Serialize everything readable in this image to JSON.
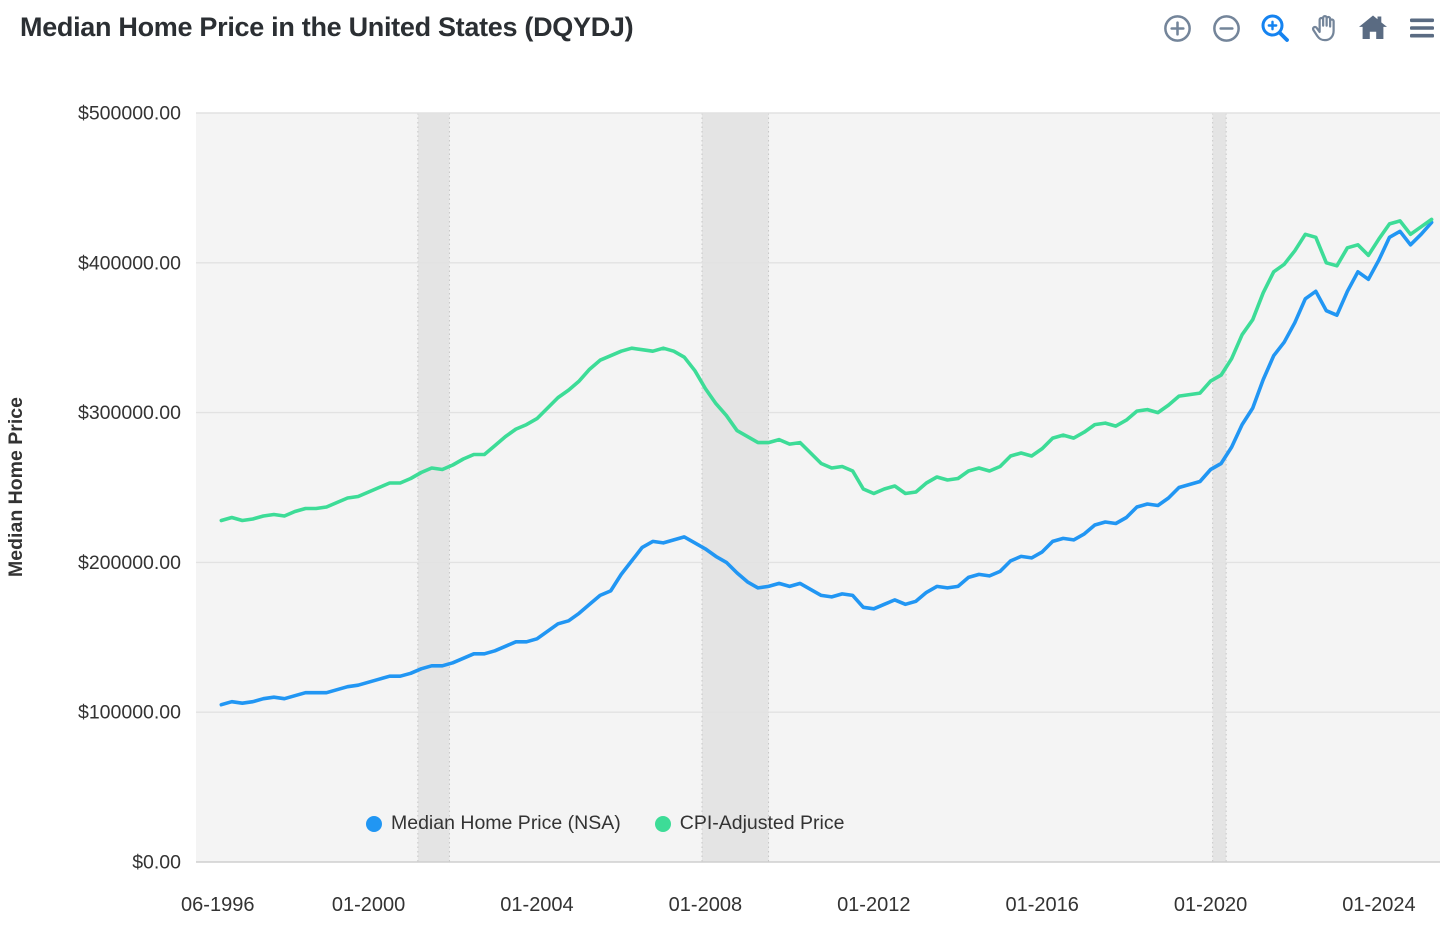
{
  "header": {
    "title": "Median Home Price in the United States (DQYDJ)",
    "toolbar": {
      "buttons": [
        {
          "id": "zoom-in",
          "icon": "circle-plus-icon",
          "active": false
        },
        {
          "id": "zoom-out",
          "icon": "circle-minus-icon",
          "active": false
        },
        {
          "id": "box-zoom",
          "icon": "magnifier-plus-icon",
          "active": true
        },
        {
          "id": "pan",
          "icon": "hand-icon",
          "active": false
        },
        {
          "id": "reset",
          "icon": "home-icon",
          "active": false
        },
        {
          "id": "menu",
          "icon": "hamburger-icon",
          "active": false
        }
      ]
    }
  },
  "colors": {
    "title_text": "#2b2f33",
    "axis_text": "#333333",
    "plot_bg": "#f4f4f4",
    "grid_line": "#e2e2e2",
    "axis_line": "#cfcfcf",
    "band_fill": "#e4e4e4",
    "band_edge": "#c6c6c6",
    "icon_gray": "#74859a",
    "icon_dark": "#5a6b82",
    "icon_active_blue": "#1583f0",
    "series_blue": "#2196f3",
    "series_green": "#3ddc97"
  },
  "chart_data": {
    "type": "line",
    "title": "Median Home Price in the United States (DQYDJ)",
    "xlabel": "",
    "ylabel": "Median Home Price",
    "grid": true,
    "legend_position": "bottom-inside",
    "xlim": [
      1995.9,
      2025.45
    ],
    "ylim": [
      0,
      500000
    ],
    "y_ticks": {
      "values": [
        0,
        100000,
        200000,
        300000,
        400000,
        500000
      ],
      "labels": [
        "$0.00",
        "$100000.00",
        "$200000.00",
        "$300000.00",
        "$400000.00",
        "$500000.00"
      ]
    },
    "x_ticks": {
      "values": [
        1996.417,
        2000,
        2004,
        2008,
        2012,
        2016,
        2020,
        2024
      ],
      "labels": [
        "06-1996",
        "01-2000",
        "01-2004",
        "01-2008",
        "01-2012",
        "01-2016",
        "01-2020",
        "01-2024"
      ]
    },
    "recession_bands": [
      [
        2001.17,
        2001.92
      ],
      [
        2007.92,
        2009.5
      ],
      [
        2020.05,
        2020.37
      ]
    ],
    "x": [
      1996.5,
      1996.75,
      1997,
      1997.25,
      1997.5,
      1997.75,
      1998,
      1998.25,
      1998.5,
      1998.75,
      1999,
      1999.25,
      1999.5,
      1999.75,
      2000,
      2000.25,
      2000.5,
      2000.75,
      2001,
      2001.25,
      2001.5,
      2001.75,
      2002,
      2002.25,
      2002.5,
      2002.75,
      2003,
      2003.25,
      2003.5,
      2003.75,
      2004,
      2004.25,
      2004.5,
      2004.75,
      2005,
      2005.25,
      2005.5,
      2005.75,
      2006,
      2006.25,
      2006.5,
      2006.75,
      2007,
      2007.25,
      2007.5,
      2007.75,
      2008,
      2008.25,
      2008.5,
      2008.75,
      2009,
      2009.25,
      2009.5,
      2009.75,
      2010,
      2010.25,
      2010.5,
      2010.75,
      2011,
      2011.25,
      2011.5,
      2011.75,
      2012,
      2012.25,
      2012.5,
      2012.75,
      2013,
      2013.25,
      2013.5,
      2013.75,
      2014,
      2014.25,
      2014.5,
      2014.75,
      2015,
      2015.25,
      2015.5,
      2015.75,
      2016,
      2016.25,
      2016.5,
      2016.75,
      2017,
      2017.25,
      2017.5,
      2017.75,
      2018,
      2018.25,
      2018.5,
      2018.75,
      2019,
      2019.25,
      2019.5,
      2019.75,
      2020,
      2020.25,
      2020.5,
      2020.75,
      2021,
      2021.25,
      2021.5,
      2021.75,
      2022,
      2022.25,
      2022.5,
      2022.75,
      2023,
      2023.25,
      2023.5,
      2023.75,
      2024,
      2024.25,
      2024.5,
      2024.75,
      2025,
      2025.25
    ],
    "series": [
      {
        "name": "Median Home Price (NSA)",
        "color": "#2196f3",
        "values": [
          105000,
          107000,
          106000,
          107000,
          109000,
          110000,
          109000,
          111000,
          113000,
          113000,
          113000,
          115000,
          117000,
          118000,
          120000,
          122000,
          124000,
          124000,
          126000,
          129000,
          131000,
          131000,
          133000,
          136000,
          139000,
          139000,
          141000,
          144000,
          147000,
          147000,
          149000,
          154000,
          159000,
          161000,
          166000,
          172000,
          178000,
          181000,
          192000,
          201000,
          210000,
          214000,
          213000,
          215000,
          217000,
          213000,
          209000,
          204000,
          200000,
          193000,
          187000,
          183000,
          184000,
          186000,
          184000,
          186000,
          182000,
          178000,
          177000,
          179000,
          178000,
          170000,
          169000,
          172000,
          175000,
          172000,
          174000,
          180000,
          184000,
          183000,
          184000,
          190000,
          192000,
          191000,
          194000,
          201000,
          204000,
          203000,
          207000,
          214000,
          216000,
          215000,
          219000,
          225000,
          227000,
          226000,
          230000,
          237000,
          239000,
          238000,
          243000,
          250000,
          252000,
          254000,
          262000,
          266000,
          277000,
          292000,
          303000,
          322000,
          338000,
          347000,
          360000,
          376000,
          381000,
          368000,
          365000,
          381000,
          394000,
          389000,
          402000,
          417000,
          421000,
          412000,
          419000,
          427000
        ]
      },
      {
        "name": "CPI-Adjusted Price",
        "color": "#3ddc97",
        "values": [
          228000,
          230000,
          228000,
          229000,
          231000,
          232000,
          231000,
          234000,
          236000,
          236000,
          237000,
          240000,
          243000,
          244000,
          247000,
          250000,
          253000,
          253000,
          256000,
          260000,
          263000,
          262000,
          265000,
          269000,
          272000,
          272000,
          278000,
          284000,
          289000,
          292000,
          296000,
          303000,
          310000,
          315000,
          321000,
          329000,
          335000,
          338000,
          341000,
          343000,
          342000,
          341000,
          343000,
          341000,
          337000,
          328000,
          316000,
          306000,
          298000,
          288000,
          284000,
          280000,
          280000,
          282000,
          279000,
          280000,
          273000,
          266000,
          263000,
          264000,
          261000,
          249000,
          246000,
          249000,
          251000,
          246000,
          247000,
          253000,
          257000,
          255000,
          256000,
          261000,
          263000,
          261000,
          264000,
          271000,
          273000,
          271000,
          276000,
          283000,
          285000,
          283000,
          287000,
          292000,
          293000,
          291000,
          295000,
          301000,
          302000,
          300000,
          305000,
          311000,
          312000,
          313000,
          321000,
          325000,
          336000,
          352000,
          362000,
          380000,
          394000,
          399000,
          408000,
          419000,
          417000,
          400000,
          398000,
          410000,
          412000,
          405000,
          416000,
          426000,
          428000,
          419000,
          424000,
          429000
        ]
      }
    ]
  }
}
